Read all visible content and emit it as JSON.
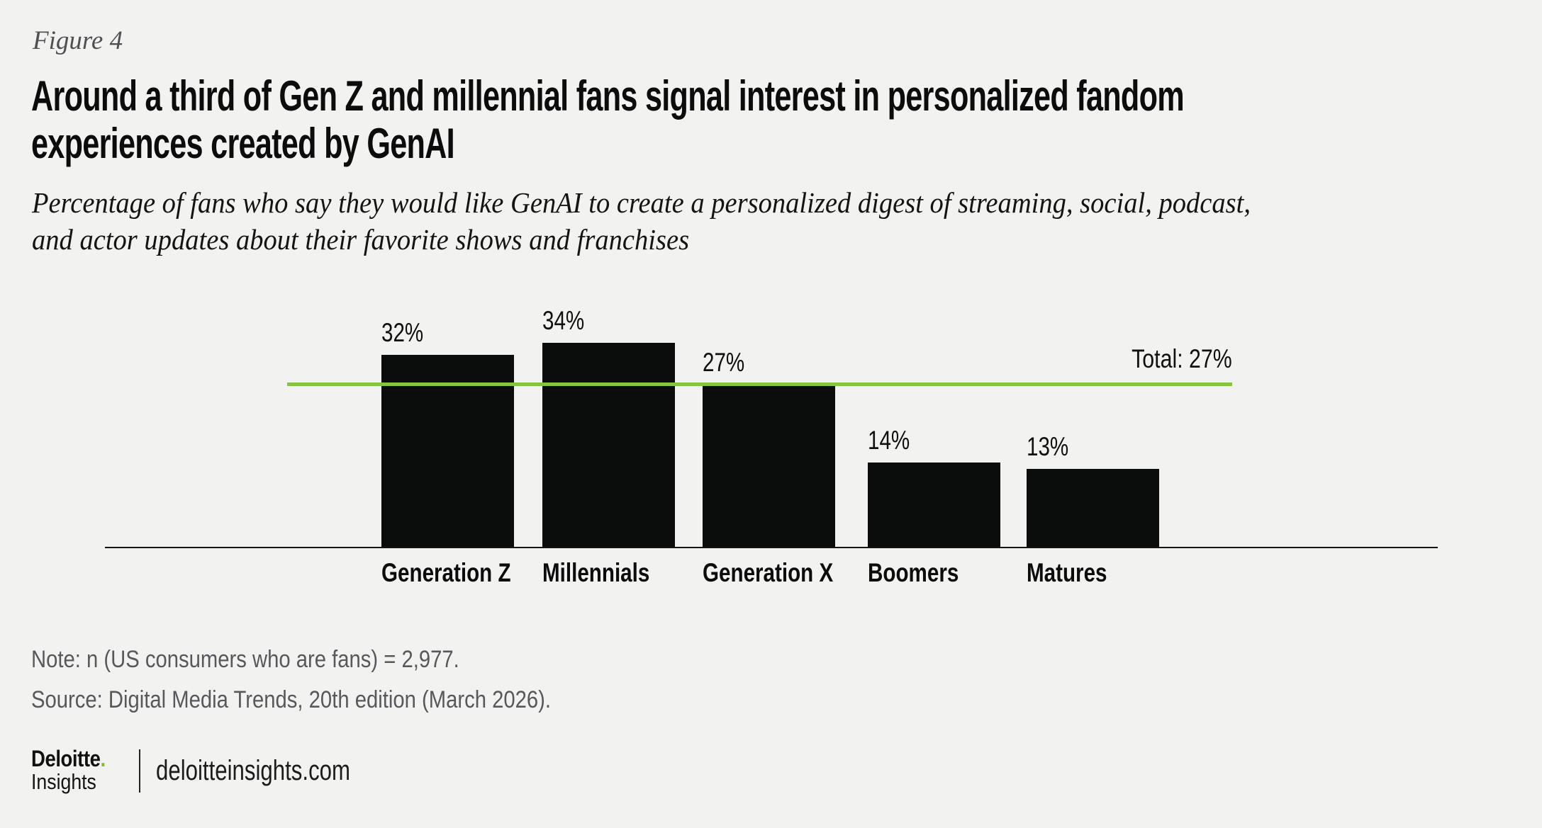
{
  "figure_label": "Figure 4",
  "header": {
    "title_line1": "Around a third of Gen Z and millennial fans signal interest in personalized fandom",
    "title_line2": "experiences created by GenAI",
    "subtitle_line1": "Percentage of fans who say they would like GenAI to create a personalized digest of streaming, social, podcast,",
    "subtitle_line2": "and actor updates about their favorite shows and franchises"
  },
  "chart_data": {
    "type": "bar",
    "title": "Percentage of fans who say they would like GenAI to create a personalized digest of streaming, social, podcast, and actor updates about their favorite shows and franchises",
    "categories": [
      "Generation Z",
      "Millennials",
      "Generation X",
      "Boomers",
      "Matures"
    ],
    "values": [
      32,
      34,
      27,
      14,
      13
    ],
    "value_labels": [
      "32%",
      "34%",
      "27%",
      "14%",
      "13%"
    ],
    "total_line": {
      "label": "Total: 27%",
      "value": 27,
      "color": "#84C441"
    },
    "bar_color": "#0A0D0B",
    "xlabel": "",
    "ylabel": "",
    "ylim": [
      0,
      40
    ],
    "grid": false,
    "legend": "none"
  },
  "footer": {
    "note": "Note: n (US consumers who are fans) = 2,977.",
    "source": "Source: Digital Media Trends, 20th edition (March 2026)."
  },
  "logo": {
    "brand": "Deloitte",
    "brand_dot": ".",
    "sub_brand": "Insights",
    "site": "deloitteinsights.com",
    "dot_color": "#86BC25"
  },
  "colors": {
    "background": "#F2F2F1",
    "text_primary": "#0D0D0D",
    "text_secondary": "#56585B",
    "figure_label": "#505053",
    "axis": "#141414"
  }
}
